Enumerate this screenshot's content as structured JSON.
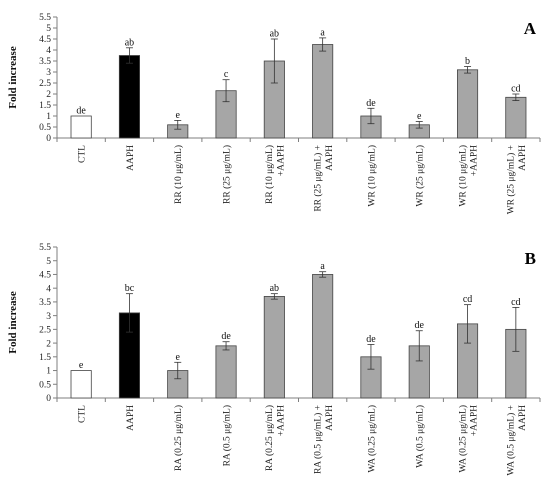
{
  "colors": {
    "white_bar": "#ffffff",
    "black_bar": "#000000",
    "gray_bar": "#a6a6a6",
    "axis": "#7f7f7f",
    "bar_edge": "#444444"
  },
  "chart_data": [
    {
      "type": "bar",
      "panel_label": "A",
      "ylabel": "Fold increase",
      "ylim": [
        0,
        5.5
      ],
      "yticks": [
        "0",
        "0.5",
        "1",
        "1.5",
        "2",
        "2.5",
        "3",
        "3.5",
        "4",
        "4.5",
        "5",
        "5.5"
      ],
      "categories": [
        "CTL",
        "AAPH",
        "RR (10 μg/mL)",
        "RR (25 μg/mL)",
        "RR (10 μg/mL) +AAPH",
        "RR (25 μg/mL) + AAPH",
        "WR (10 μg/mL)",
        "WR (25 μg/mL)",
        "WR (10 μg/mL) +AAPH",
        "WR (25 μg/mL) + AAPH"
      ],
      "category_lines": [
        [
          "CTL"
        ],
        [
          "AAPH"
        ],
        [
          "RR (10 μg/mL)"
        ],
        [
          "RR (25 μg/mL)"
        ],
        [
          "RR (10 μg/mL)",
          "+AAPH"
        ],
        [
          "RR (25 μg/mL) +",
          "AAPH"
        ],
        [
          "WR (10 μg/mL)"
        ],
        [
          "WR (25 μg/mL)"
        ],
        [
          "WR (10 μg/mL)",
          "+AAPH"
        ],
        [
          "WR (25 μg/mL) +",
          "AAPH"
        ]
      ],
      "values": [
        1.0,
        3.75,
        0.6,
        2.15,
        3.5,
        4.25,
        1.0,
        0.6,
        3.1,
        1.85
      ],
      "errors": [
        0.0,
        0.35,
        0.2,
        0.5,
        1.0,
        0.3,
        0.35,
        0.15,
        0.15,
        0.15
      ],
      "bar_styles": [
        "white",
        "black",
        "gray",
        "gray",
        "gray",
        "gray",
        "gray",
        "gray",
        "gray",
        "gray"
      ],
      "significance": [
        "de",
        "ab",
        "e",
        "c",
        "ab",
        "a",
        "de",
        "e",
        "b",
        "cd"
      ]
    },
    {
      "type": "bar",
      "panel_label": "B",
      "ylabel": "Fold increase",
      "ylim": [
        0,
        5.5
      ],
      "yticks": [
        "0",
        "0.5",
        "1",
        "1.5",
        "2",
        "2.5",
        "3",
        "3.5",
        "4",
        "4.5",
        "5",
        "5.5"
      ],
      "categories": [
        "CTL",
        "AAPH",
        "RA (0.25 μg/mL)",
        "RA (0.5 μg/mL)",
        "RA (0.25 μg/mL) +AAPH",
        "RA (0.5 μg/mL) + AAPH",
        "WA (0.25 μg/mL)",
        "WA (0.5 μg/mL)",
        "WA (0.25 μg/mL) +AAPH",
        "WA (0.5 μg/mL) + AAPH"
      ],
      "category_lines": [
        [
          "CTL"
        ],
        [
          "AAPH"
        ],
        [
          "RA (0.25 μg/mL)"
        ],
        [
          "RA (0.5 μg/mL)"
        ],
        [
          "RA (0.25 μg/mL)",
          "+AAPH"
        ],
        [
          "RA (0.5 μg/mL) +",
          "AAPH"
        ],
        [
          "WA (0.25 μg/mL)"
        ],
        [
          "WA (0.5 μg/mL)"
        ],
        [
          "WA (0.25 μg/mL)",
          "+AAPH"
        ],
        [
          "WA (0.5 μg/mL) +",
          "AAPH"
        ]
      ],
      "values": [
        1.0,
        3.1,
        1.0,
        1.9,
        3.7,
        4.5,
        1.5,
        1.9,
        2.7,
        2.5
      ],
      "errors": [
        0.0,
        0.7,
        0.3,
        0.15,
        0.1,
        0.1,
        0.45,
        0.55,
        0.7,
        0.8
      ],
      "bar_styles": [
        "white",
        "black",
        "gray",
        "gray",
        "gray",
        "gray",
        "gray",
        "gray",
        "gray",
        "gray"
      ],
      "significance": [
        "e",
        "bc",
        "e",
        "de",
        "ab",
        "a",
        "de",
        "de",
        "cd",
        "cd"
      ]
    }
  ]
}
